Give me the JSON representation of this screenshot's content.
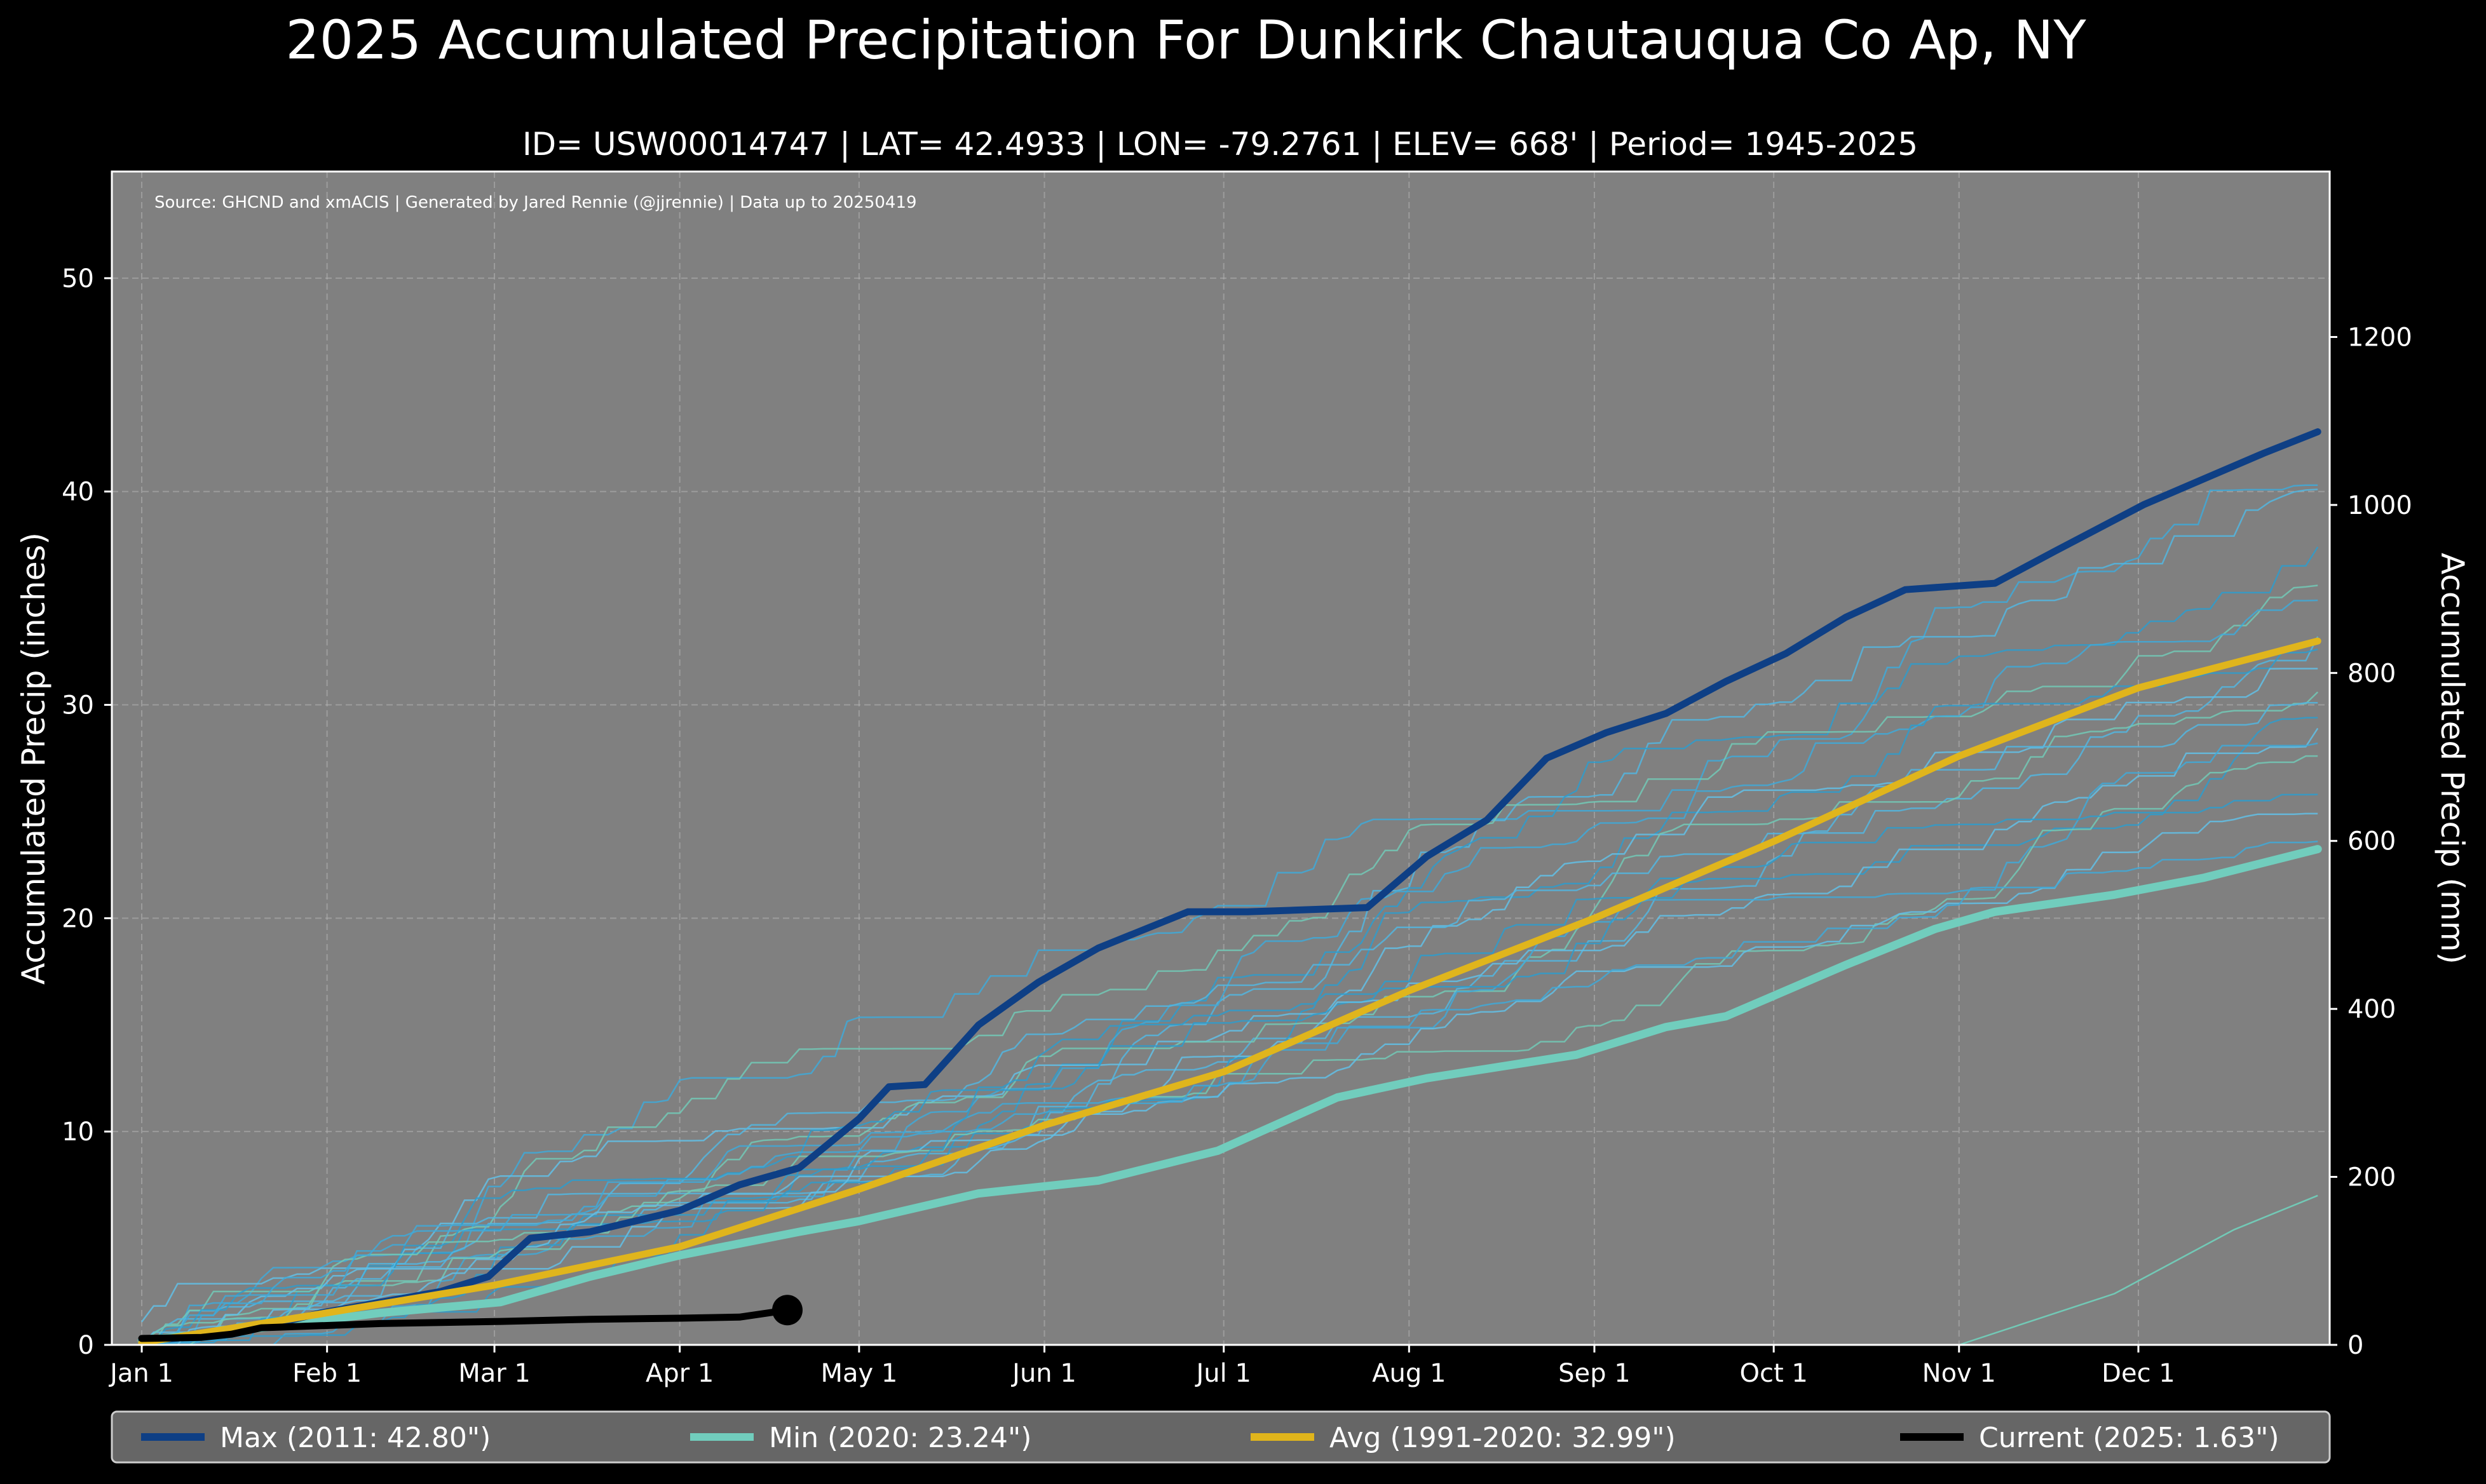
{
  "chart_data": {
    "type": "line",
    "title": "2025 Accumulated Precipitation For Dunkirk Chautauqua Co Ap, NY",
    "subtitle": "ID= USW00014747 | LAT= 42.4933 | LON= -79.2761 | ELEV= 668' | Period= 1945-2025",
    "source_note": "Source: GHCND and xmACIS | Generated by Jared Rennie (@jjrennie) | Data up to 20250419",
    "ylabel": "Accumulated Precip (inches)",
    "ylabel_right": "Accumulated Precip (mm)",
    "x_unit": "day of year",
    "xlim": [
      -5,
      366
    ],
    "ylim": [
      0,
      55
    ],
    "ylim_right_mm": [
      0,
      1397
    ],
    "grid": true,
    "x_ticks": [
      {
        "label": "Jan 1",
        "day": 0
      },
      {
        "label": "Feb 1",
        "day": 31
      },
      {
        "label": "Mar 1",
        "day": 59
      },
      {
        "label": "Apr 1",
        "day": 90
      },
      {
        "label": "May 1",
        "day": 120
      },
      {
        "label": "Jun 1",
        "day": 151
      },
      {
        "label": "Jul 1",
        "day": 181
      },
      {
        "label": "Aug 1",
        "day": 212
      },
      {
        "label": "Sep 1",
        "day": 243
      },
      {
        "label": "Oct 1",
        "day": 273
      },
      {
        "label": "Nov 1",
        "day": 304
      },
      {
        "label": "Dec 1",
        "day": 334
      }
    ],
    "y_ticks": [
      "0",
      "10",
      "20",
      "30",
      "40",
      "50"
    ],
    "y_ticks_right": [
      "0",
      "200",
      "400",
      "600",
      "800",
      "1000",
      "1200"
    ],
    "background_years": {
      "note": "thin lines for individual years of the period of record",
      "final_totals": [
        40.3,
        40.1,
        37.4,
        35.6,
        34.9,
        33.2,
        32.6,
        31.7,
        30.6,
        30.1,
        29.4,
        28.9,
        28.2,
        27.6,
        25.8,
        24.9,
        23.6
      ],
      "partial_2020_style": {
        "days": [
          304,
          330,
          350,
          364
        ],
        "values": [
          0.0,
          2.4,
          5.4,
          7.0
        ]
      }
    },
    "series": [
      {
        "name": "Max",
        "legend": "Max (2011:  42.80\")",
        "color": "#0e3f85",
        "days": [
          0,
          15,
          30,
          50,
          58,
          65,
          75,
          90,
          100,
          110,
          120,
          125,
          131,
          140,
          150,
          160,
          175,
          185,
          205,
          215,
          225,
          235,
          245,
          255,
          265,
          275,
          285,
          295,
          310,
          320,
          335,
          345,
          355,
          364
        ],
        "values": [
          0.2,
          0.5,
          1.5,
          2.5,
          3.2,
          5.0,
          5.3,
          6.3,
          7.5,
          8.3,
          10.6,
          12.1,
          12.2,
          15.0,
          17.0,
          18.6,
          20.3,
          20.3,
          20.5,
          22.9,
          24.6,
          27.5,
          28.7,
          29.6,
          31.1,
          32.4,
          34.1,
          35.4,
          35.7,
          37.2,
          39.4,
          40.6,
          41.8,
          42.8
        ]
      },
      {
        "name": "Min",
        "legend": "Min (2020:  23.24\")",
        "color": "#71cdbd",
        "days": [
          0,
          20,
          40,
          60,
          75,
          90,
          110,
          120,
          140,
          160,
          180,
          200,
          215,
          240,
          255,
          265,
          285,
          300,
          310,
          330,
          345,
          364
        ],
        "values": [
          0.2,
          0.8,
          1.5,
          2.0,
          3.2,
          4.2,
          5.3,
          5.8,
          7.1,
          7.7,
          9.1,
          11.6,
          12.5,
          13.6,
          14.9,
          15.4,
          17.8,
          19.5,
          20.3,
          21.1,
          21.9,
          23.24
        ]
      },
      {
        "name": "Avg",
        "legend": "Avg (1991-2020:  32.99\")",
        "color": "#e0b51c",
        "days": [
          0,
          31,
          59,
          90,
          120,
          151,
          181,
          212,
          243,
          273,
          304,
          334,
          364
        ],
        "values": [
          0.1,
          1.5,
          2.8,
          4.6,
          7.3,
          10.3,
          12.8,
          16.6,
          20.0,
          23.6,
          27.6,
          30.8,
          32.99
        ]
      },
      {
        "name": "Current",
        "legend": "Current (2025:   1.63\")",
        "color": "#000000",
        "days": [
          0,
          10,
          15,
          20,
          30,
          40,
          50,
          60,
          75,
          90,
          100,
          108
        ],
        "values": [
          0.3,
          0.35,
          0.5,
          0.8,
          0.9,
          1.0,
          1.05,
          1.1,
          1.2,
          1.25,
          1.3,
          1.63
        ]
      }
    ]
  }
}
